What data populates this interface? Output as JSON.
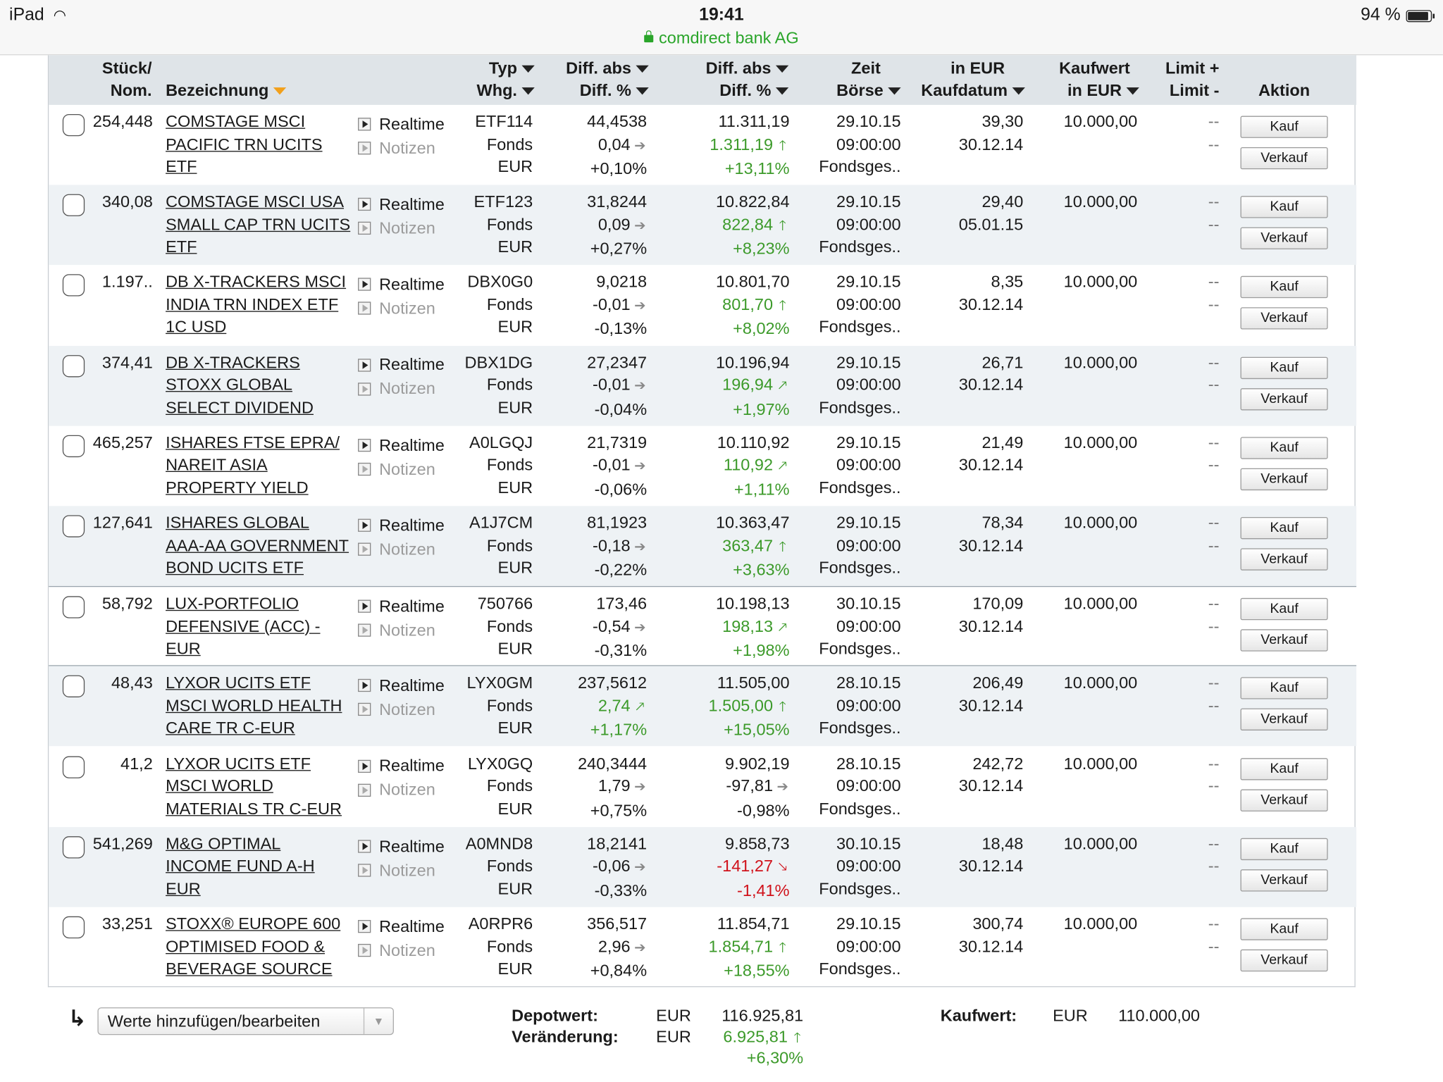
{
  "status": {
    "device": "iPad",
    "time": "19:41",
    "battery": "94 %",
    "url": "comdirect bank AG"
  },
  "header": {
    "qty_l1": "Stück/",
    "qty_l2": "Nom.",
    "name": "Bezeichnung",
    "typ_l1": "Typ",
    "typ_l2": "Whg.",
    "dabs_l1": "Diff. abs",
    "dabs_l2": "Diff. %",
    "dabs2_l1": "Diff. abs",
    "dabs2_l2": "Diff. %",
    "zeit_l1": "Zeit",
    "zeit_l2": "Börse",
    "eur_l1": "in EUR",
    "eur_l2": "Kaufdatum",
    "kauf_l1": "Kaufwert",
    "kauf_l2": "in EUR",
    "limit_l1": "Limit +",
    "limit_l2": "Limit -",
    "aktion": "Aktion"
  },
  "labels": {
    "realtime": "Realtime",
    "notizen": "Notizen",
    "buy": "Kauf",
    "sell": "Verkauf"
  },
  "rows": [
    {
      "qty": "254,448",
      "name": [
        "COMSTAGE MSCI",
        "PACIFIC TRN UCITS",
        "ETF"
      ],
      "wkn": "ETF114",
      "type": "Fonds",
      "cur": "EUR",
      "price": "44,4538",
      "diff": "0,04",
      "diff_pct": "+0,10%",
      "diff_dir": "flat",
      "diff_color": "black",
      "value": "11.311,19",
      "vdiff": "1.311,19",
      "vdiff_pct": "+13,11%",
      "vdir": "up",
      "vcolor": "green",
      "date": "29.10.15",
      "time": "09:00:00",
      "exch": "Fondsges..",
      "buy_price": "39,30",
      "buy_date": "30.12.14",
      "kaufwert": "10.000,00",
      "limit_plus": "--",
      "limit_minus": "--"
    },
    {
      "qty": "340,08",
      "name": [
        "COMSTAGE MSCI USA",
        "SMALL CAP TRN UCITS",
        "ETF"
      ],
      "wkn": "ETF123",
      "type": "Fonds",
      "cur": "EUR",
      "price": "31,8244",
      "diff": "0,09",
      "diff_pct": "+0,27%",
      "diff_dir": "flat",
      "diff_color": "black",
      "value": "10.822,84",
      "vdiff": "822,84",
      "vdiff_pct": "+8,23%",
      "vdir": "up",
      "vcolor": "green",
      "date": "29.10.15",
      "time": "09:00:00",
      "exch": "Fondsges..",
      "buy_price": "29,40",
      "buy_date": "05.01.15",
      "kaufwert": "10.000,00",
      "limit_plus": "--",
      "limit_minus": "--"
    },
    {
      "qty": "1.197..",
      "name": [
        "DB X-TRACKERS MSCI",
        "INDIA TRN INDEX ETF",
        "1C USD"
      ],
      "wkn": "DBX0G0",
      "type": "Fonds",
      "cur": "EUR",
      "price": "9,0218",
      "diff": "-0,01",
      "diff_pct": "-0,13%",
      "diff_dir": "flat",
      "diff_color": "black",
      "value": "10.801,70",
      "vdiff": "801,70",
      "vdiff_pct": "+8,02%",
      "vdir": "up",
      "vcolor": "green",
      "date": "29.10.15",
      "time": "09:00:00",
      "exch": "Fondsges..",
      "buy_price": "8,35",
      "buy_date": "30.12.14",
      "kaufwert": "10.000,00",
      "limit_plus": "--",
      "limit_minus": "--"
    },
    {
      "qty": "374,41",
      "name": [
        "DB X-TRACKERS",
        "STOXX GLOBAL",
        "SELECT DIVIDEND"
      ],
      "wkn": "DBX1DG",
      "type": "Fonds",
      "cur": "EUR",
      "price": "27,2347",
      "diff": "-0,01",
      "diff_pct": "-0,04%",
      "diff_dir": "flat",
      "diff_color": "black",
      "value": "10.196,94",
      "vdiff": "196,94",
      "vdiff_pct": "+1,97%",
      "vdir": "upright",
      "vcolor": "green",
      "date": "29.10.15",
      "time": "09:00:00",
      "exch": "Fondsges..",
      "buy_price": "26,71",
      "buy_date": "30.12.14",
      "kaufwert": "10.000,00",
      "limit_plus": "--",
      "limit_minus": "--"
    },
    {
      "qty": "465,257",
      "name": [
        "ISHARES FTSE EPRA/",
        "NAREIT ASIA",
        "PROPERTY YIELD"
      ],
      "wkn": "A0LGQJ",
      "type": "Fonds",
      "cur": "EUR",
      "price": "21,7319",
      "diff": "-0,01",
      "diff_pct": "-0,06%",
      "diff_dir": "flat",
      "diff_color": "black",
      "value": "10.110,92",
      "vdiff": "110,92",
      "vdiff_pct": "+1,11%",
      "vdir": "upright",
      "vcolor": "green",
      "date": "29.10.15",
      "time": "09:00:00",
      "exch": "Fondsges..",
      "buy_price": "21,49",
      "buy_date": "30.12.14",
      "kaufwert": "10.000,00",
      "limit_plus": "--",
      "limit_minus": "--"
    },
    {
      "qty": "127,641",
      "name": [
        "ISHARES GLOBAL",
        "AAA-AA GOVERNMENT",
        "BOND UCITS ETF"
      ],
      "wkn": "A1J7CM",
      "type": "Fonds",
      "cur": "EUR",
      "price": "81,1923",
      "diff": "-0,18",
      "diff_pct": "-0,22%",
      "diff_dir": "flat",
      "diff_color": "black",
      "value": "10.363,47",
      "vdiff": "363,47",
      "vdiff_pct": "+3,63%",
      "vdir": "up",
      "vcolor": "green",
      "date": "29.10.15",
      "time": "09:00:00",
      "exch": "Fondsges..",
      "buy_price": "78,34",
      "buy_date": "30.12.14",
      "kaufwert": "10.000,00",
      "limit_plus": "--",
      "limit_minus": "--"
    },
    {
      "qty": "58,792",
      "name": [
        "LUX-PORTFOLIO",
        "DEFENSIVE (ACC) -",
        "EUR"
      ],
      "wkn": "750766",
      "type": "Fonds",
      "cur": "EUR",
      "price": "173,46",
      "diff": "-0,54",
      "diff_pct": "-0,31%",
      "diff_dir": "flat",
      "diff_color": "black",
      "value": "10.198,13",
      "vdiff": "198,13",
      "vdiff_pct": "+1,98%",
      "vdir": "upright",
      "vcolor": "green",
      "date": "30.10.15",
      "time": "09:00:00",
      "exch": "Fondsges..",
      "buy_price": "170,09",
      "buy_date": "30.12.14",
      "kaufwert": "10.000,00",
      "limit_plus": "--",
      "limit_minus": "--"
    },
    {
      "qty": "48,43",
      "name": [
        "LYXOR UCITS ETF",
        "MSCI WORLD HEALTH",
        "CARE TR C-EUR"
      ],
      "wkn": "LYX0GM",
      "type": "Fonds",
      "cur": "EUR",
      "price": "237,5612",
      "diff": "2,74",
      "diff_pct": "+1,17%",
      "diff_dir": "upright",
      "diff_color": "green",
      "value": "11.505,00",
      "vdiff": "1.505,00",
      "vdiff_pct": "+15,05%",
      "vdir": "up",
      "vcolor": "green",
      "date": "28.10.15",
      "time": "09:00:00",
      "exch": "Fondsges..",
      "buy_price": "206,49",
      "buy_date": "30.12.14",
      "kaufwert": "10.000,00",
      "limit_plus": "--",
      "limit_minus": "--"
    },
    {
      "qty": "41,2",
      "name": [
        "LYXOR UCITS ETF",
        "MSCI WORLD",
        "MATERIALS TR C-EUR"
      ],
      "wkn": "LYX0GQ",
      "type": "Fonds",
      "cur": "EUR",
      "price": "240,3444",
      "diff": "1,79",
      "diff_pct": "+0,75%",
      "diff_dir": "flat",
      "diff_color": "black",
      "value": "9.902,19",
      "vdiff": "-97,81",
      "vdiff_pct": "-0,98%",
      "vdir": "flat",
      "vcolor": "black",
      "date": "28.10.15",
      "time": "09:00:00",
      "exch": "Fondsges..",
      "buy_price": "242,72",
      "buy_date": "30.12.14",
      "kaufwert": "10.000,00",
      "limit_plus": "--",
      "limit_minus": "--"
    },
    {
      "qty": "541,269",
      "name": [
        "M&G OPTIMAL",
        "INCOME FUND A-H",
        "EUR"
      ],
      "wkn": "A0MND8",
      "type": "Fonds",
      "cur": "EUR",
      "price": "18,2141",
      "diff": "-0,06",
      "diff_pct": "-0,33%",
      "diff_dir": "flat",
      "diff_color": "black",
      "value": "9.858,73",
      "vdiff": "-141,27",
      "vdiff_pct": "-1,41%",
      "vdir": "downright",
      "vcolor": "red",
      "date": "30.10.15",
      "time": "09:00:00",
      "exch": "Fondsges..",
      "buy_price": "18,48",
      "buy_date": "30.12.14",
      "kaufwert": "10.000,00",
      "limit_plus": "--",
      "limit_minus": "--"
    },
    {
      "qty": "33,251",
      "name": [
        "STOXX® EUROPE 600",
        "OPTIMISED FOOD &",
        "BEVERAGE SOURCE"
      ],
      "wkn": "A0RPR6",
      "type": "Fonds",
      "cur": "EUR",
      "price": "356,517",
      "diff": "2,96",
      "diff_pct": "+0,84%",
      "diff_dir": "flat",
      "diff_color": "black",
      "value": "11.854,71",
      "vdiff": "1.854,71",
      "vdiff_pct": "+18,55%",
      "vdir": "up",
      "vcolor": "green",
      "date": "29.10.15",
      "time": "09:00:00",
      "exch": "Fondsges..",
      "buy_price": "300,74",
      "buy_date": "30.12.14",
      "kaufwert": "10.000,00",
      "limit_plus": "--",
      "limit_minus": "--"
    }
  ],
  "footer": {
    "dropdown": "Werte hinzufügen/bearbeiten",
    "depot_label": "Depotwert:",
    "depot_cur": "EUR",
    "depot_value": "116.925,81",
    "change_label": "Veränderung:",
    "change_cur": "EUR",
    "change_value": "6.925,81",
    "change_pct": "+6,30%",
    "kauf_label": "Kaufwert:",
    "kauf_cur": "EUR",
    "kauf_value": "110.000,00"
  },
  "colors": {
    "green": "#3c9a2a",
    "red": "#d0121b",
    "header_bg": "#dfe4e8",
    "alt_row": "#eef2f5"
  }
}
